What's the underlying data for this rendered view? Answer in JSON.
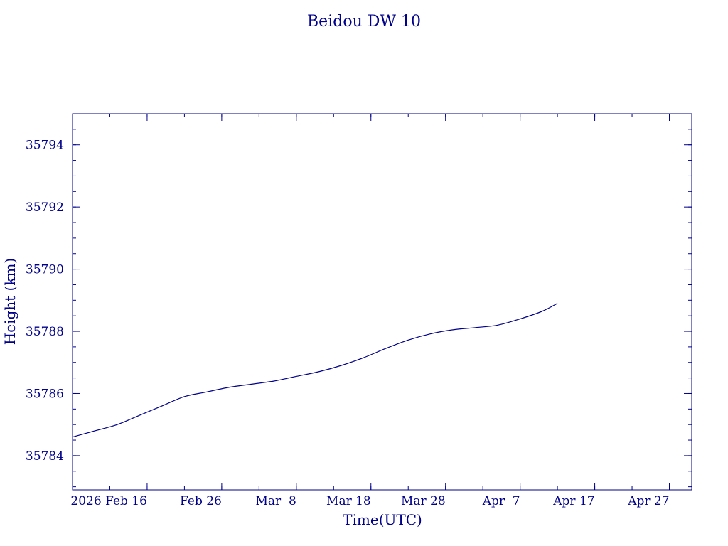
{
  "chart_data": {
    "type": "line",
    "title": "Beidou DW 10",
    "xlabel": "Time(UTC)",
    "ylabel": "Height (km)",
    "x_tick_labels": [
      "2026 Feb 16",
      "Feb 26",
      "Mar  8",
      "Mar 18",
      "Mar 28",
      "Apr  7",
      "Apr 17",
      "Apr 27"
    ],
    "x_tick_dates": [
      "2026-02-16",
      "2026-02-26",
      "2026-03-08",
      "2026-03-18",
      "2026-03-28",
      "2026-04-07",
      "2026-04-17",
      "2026-04-27"
    ],
    "xlim": [
      "2026-02-06",
      "2026-04-30"
    ],
    "y_ticks": [
      35784,
      35786,
      35788,
      35790,
      35792,
      35794
    ],
    "y_tick_labels": [
      "35784",
      "35786",
      "35788",
      "35790",
      "35792",
      "35794"
    ],
    "ylim": [
      35782.9,
      35795.0
    ],
    "grid": false,
    "series": [
      {
        "x": [
          "2026-02-06",
          "2026-02-09",
          "2026-02-12",
          "2026-02-15",
          "2026-02-18",
          "2026-02-21",
          "2026-02-24",
          "2026-02-27",
          "2026-03-02",
          "2026-03-05",
          "2026-03-08",
          "2026-03-11",
          "2026-03-14",
          "2026-03-17",
          "2026-03-20",
          "2026-03-23",
          "2026-03-26",
          "2026-03-29",
          "2026-04-01",
          "2026-04-04",
          "2026-04-07",
          "2026-04-10",
          "2026-04-12"
        ],
        "y": [
          35784.6,
          35784.8,
          35785.0,
          35785.3,
          35785.6,
          35785.9,
          35786.05,
          35786.2,
          35786.3,
          35786.4,
          35786.55,
          35786.7,
          35786.9,
          35787.15,
          35787.45,
          35787.72,
          35787.92,
          35788.05,
          35788.12,
          35788.2,
          35788.4,
          35788.65,
          35788.9
        ],
        "color": "#00008b"
      }
    ]
  }
}
